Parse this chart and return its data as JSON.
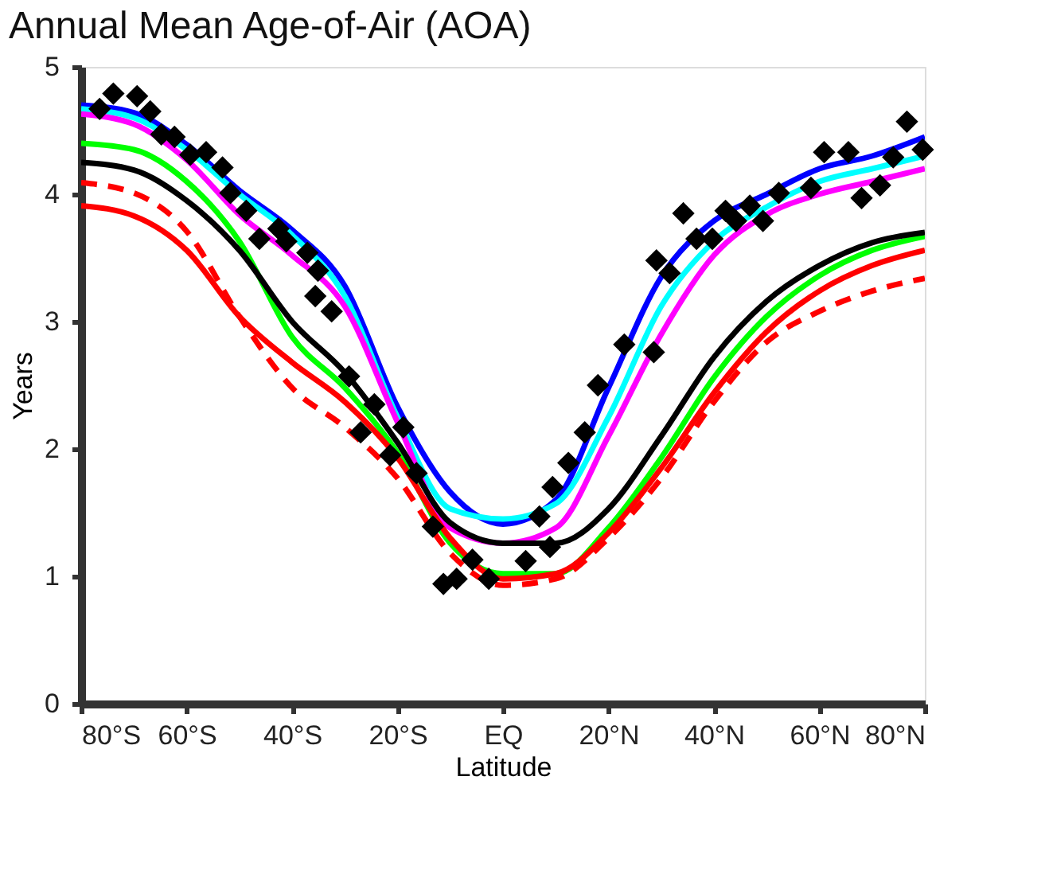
{
  "chart_data": {
    "type": "line",
    "title": "Annual Mean Age-of-Air (AOA)",
    "xlabel": "Latitude",
    "ylabel": "Years",
    "x": [
      -80,
      -70,
      -60,
      -50,
      -40,
      -30,
      -20,
      -10,
      0,
      10,
      20,
      30,
      40,
      50,
      60,
      70,
      80
    ],
    "xlim": [
      -80,
      80
    ],
    "ylim": [
      0,
      5
    ],
    "yticks": [
      0,
      1,
      2,
      3,
      4,
      5
    ],
    "xticks": [
      {
        "value": -80,
        "label": "80°S"
      },
      {
        "value": -60,
        "label": "60°S"
      },
      {
        "value": -40,
        "label": "40°S"
      },
      {
        "value": -20,
        "label": "20°S"
      },
      {
        "value": 0,
        "label": "EQ"
      },
      {
        "value": 20,
        "label": "20°N"
      },
      {
        "value": 40,
        "label": "40°N"
      },
      {
        "value": 60,
        "label": "60°N"
      },
      {
        "value": 80,
        "label": "80°N"
      }
    ],
    "grid": false,
    "series": [
      {
        "color": "#0000ff",
        "marker": "none",
        "line_style": "solid",
        "values": [
          4.7,
          4.64,
          4.39,
          4.03,
          3.72,
          3.28,
          2.33,
          1.66,
          1.41,
          1.6,
          2.48,
          3.35,
          3.79,
          4.0,
          4.2,
          4.3,
          4.45
        ]
      },
      {
        "color": "#00ffff",
        "marker": "none",
        "line_style": "solid",
        "values": [
          4.67,
          4.6,
          4.35,
          4.0,
          3.68,
          3.2,
          2.25,
          1.53,
          1.45,
          1.57,
          2.25,
          3.12,
          3.63,
          3.9,
          4.1,
          4.2,
          4.3
        ]
      },
      {
        "color": "#ff00ff",
        "marker": "none",
        "line_style": "solid",
        "values": [
          4.63,
          4.55,
          4.27,
          3.84,
          3.52,
          3.12,
          2.21,
          1.38,
          1.26,
          1.38,
          2.1,
          2.9,
          3.52,
          3.84,
          4.0,
          4.1,
          4.2
        ]
      },
      {
        "color": "#00ff00",
        "marker": "none",
        "line_style": "solid",
        "values": [
          4.4,
          4.35,
          4.1,
          3.63,
          2.88,
          2.48,
          1.97,
          1.26,
          1.02,
          1.02,
          1.38,
          1.93,
          2.56,
          3.04,
          3.36,
          3.56,
          3.67
        ]
      },
      {
        "color": "#000000",
        "marker": "none",
        "line_style": "solid",
        "values": [
          4.25,
          4.19,
          3.95,
          3.56,
          3.0,
          2.6,
          2.05,
          1.42,
          1.26,
          1.26,
          1.53,
          2.1,
          2.72,
          3.16,
          3.44,
          3.62,
          3.7
        ]
      },
      {
        "color": "#ff0000",
        "marker": "none",
        "line_style": "solid",
        "values": [
          3.91,
          3.83,
          3.56,
          3.04,
          2.68,
          2.37,
          1.93,
          1.3,
          0.98,
          1.02,
          1.34,
          1.85,
          2.44,
          2.92,
          3.24,
          3.44,
          3.56
        ]
      },
      {
        "color": "#ff0000",
        "marker": "none",
        "line_style": "dashed",
        "values": [
          4.09,
          4.01,
          3.71,
          3.04,
          2.48,
          2.17,
          1.77,
          1.18,
          0.93,
          0.98,
          1.3,
          1.77,
          2.37,
          2.84,
          3.08,
          3.24,
          3.34
        ]
      },
      {
        "type": "scatter",
        "color": "#000000",
        "marker": "diamond",
        "x": [
          -76.5,
          -73.9,
          -69.4,
          -66.9,
          -64.8,
          -62.3,
          -59.3,
          -56.3,
          -53.2,
          -51.7,
          -48.7,
          -46.2,
          -42.6,
          -41.1,
          -37.1,
          -35.1,
          -35.6,
          -32.5,
          -29.2,
          -24.4,
          -27.0,
          -21.4,
          -18.9,
          -16.4,
          -13.3,
          -11.3,
          -8.8,
          -5.8,
          -2.7,
          4.3,
          8.9,
          6.9,
          9.4,
          12.4,
          15.5,
          18.0,
          23.0,
          28.6,
          29.1,
          31.6,
          34.2,
          36.7,
          39.7,
          42.2,
          44.2,
          46.8,
          49.3,
          52.3,
          58.4,
          60.9,
          65.5,
          68.0,
          71.5,
          74.0,
          76.6,
          79.6
        ],
        "values": [
          4.67,
          4.79,
          4.77,
          4.65,
          4.47,
          4.45,
          4.31,
          4.33,
          4.21,
          4.01,
          3.87,
          3.65,
          3.73,
          3.63,
          3.54,
          3.4,
          3.2,
          3.08,
          2.57,
          2.35,
          2.13,
          1.95,
          2.17,
          1.81,
          1.39,
          0.94,
          0.98,
          1.13,
          0.98,
          1.12,
          1.23,
          1.47,
          1.7,
          1.89,
          2.13,
          2.5,
          2.82,
          2.76,
          3.48,
          3.38,
          3.85,
          3.65,
          3.65,
          3.87,
          3.79,
          3.91,
          3.79,
          4.01,
          4.05,
          4.33,
          4.33,
          3.97,
          4.07,
          4.29,
          4.57,
          4.35
        ]
      }
    ]
  }
}
